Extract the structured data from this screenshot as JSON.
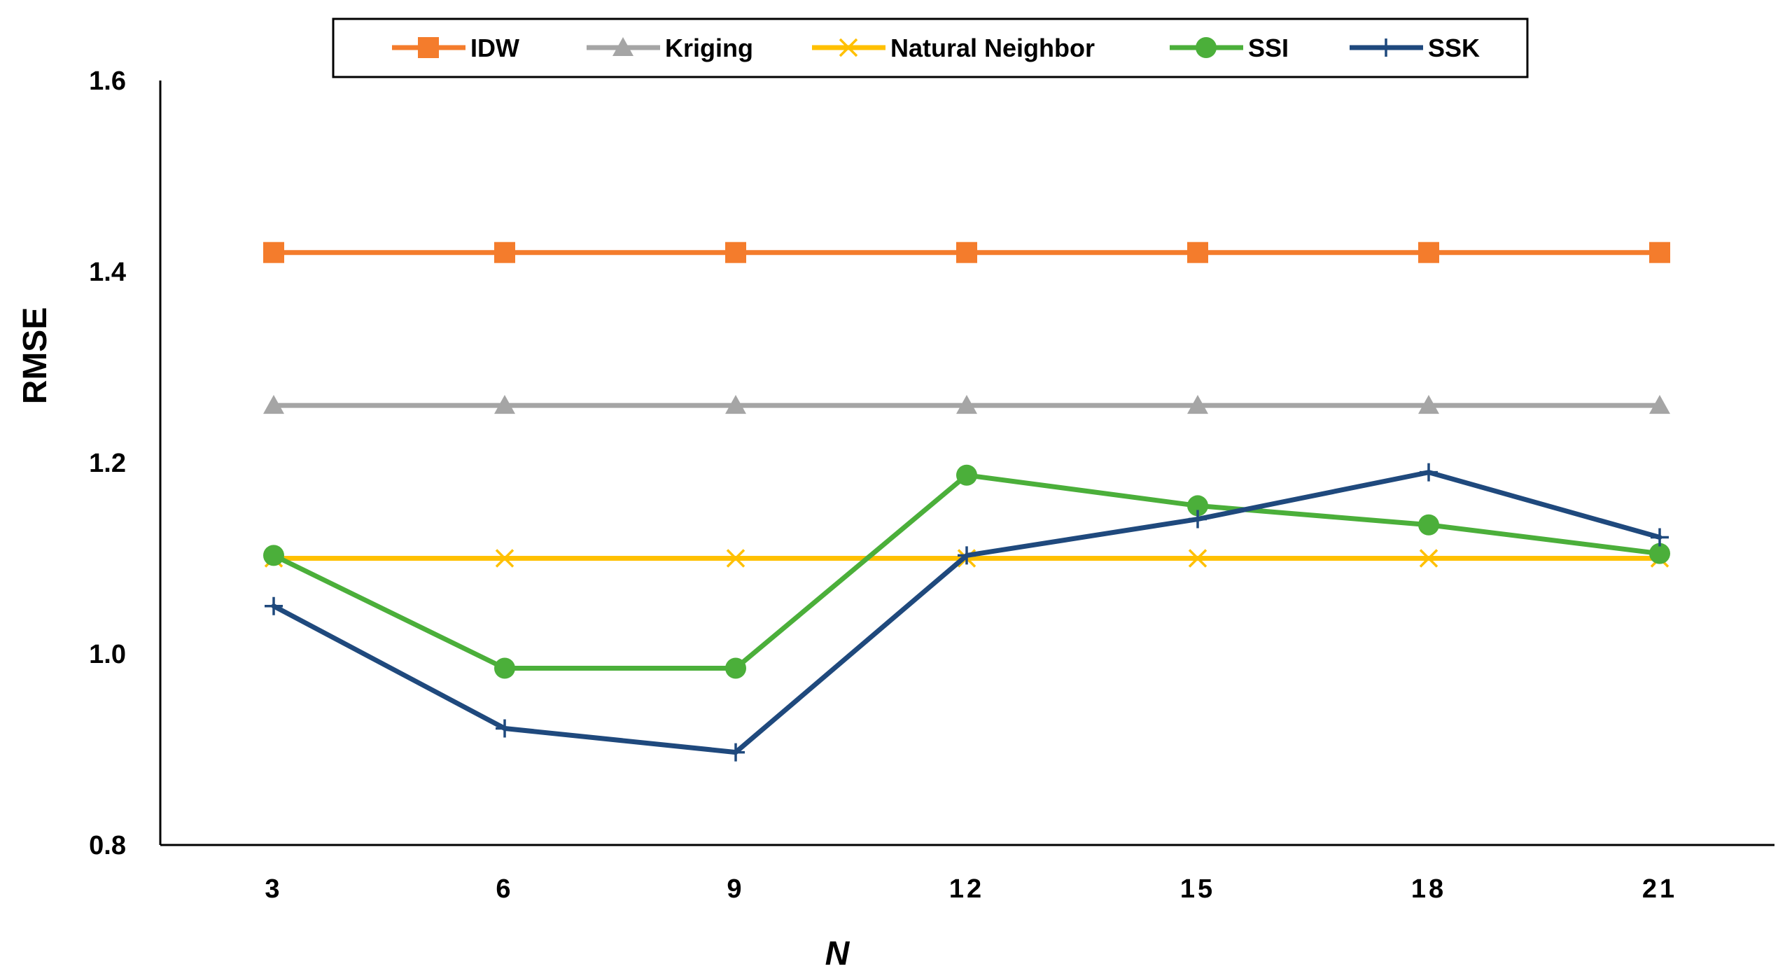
{
  "chart_data": {
    "type": "line",
    "title": "",
    "xlabel": "N",
    "ylabel": "RMSE",
    "categories": [
      "3",
      "6",
      "9",
      "12",
      "15",
      "18",
      "21"
    ],
    "ylim": [
      0.8,
      1.6
    ],
    "yticks": [
      "0.8",
      "1.0",
      "1.2",
      "1.4",
      "1.6"
    ],
    "ytick_values": [
      0.8,
      1.0,
      1.2,
      1.4,
      1.6
    ],
    "grid": false,
    "legend_position": "top",
    "series": [
      {
        "name": "IDW",
        "color": "#F47C2C",
        "marker": "square",
        "values": [
          1.42,
          1.42,
          1.42,
          1.42,
          1.42,
          1.42,
          1.42
        ]
      },
      {
        "name": "Kriging",
        "color": "#A5A5A5",
        "marker": "triangle",
        "values": [
          1.26,
          1.26,
          1.26,
          1.26,
          1.26,
          1.26,
          1.26
        ]
      },
      {
        "name": "Natural Neighbor",
        "color": "#FFC000",
        "marker": "x",
        "values": [
          1.1,
          1.1,
          1.1,
          1.1,
          1.1,
          1.1,
          1.1
        ]
      },
      {
        "name": "SSI",
        "color": "#4BAF3A",
        "marker": "circle",
        "values": [
          1.103,
          0.985,
          0.985,
          1.187,
          1.155,
          1.135,
          1.105
        ]
      },
      {
        "name": "SSK",
        "color": "#1F497D",
        "marker": "plus",
        "values": [
          1.05,
          0.922,
          0.897,
          1.103,
          1.141,
          1.19,
          1.122
        ]
      }
    ]
  }
}
